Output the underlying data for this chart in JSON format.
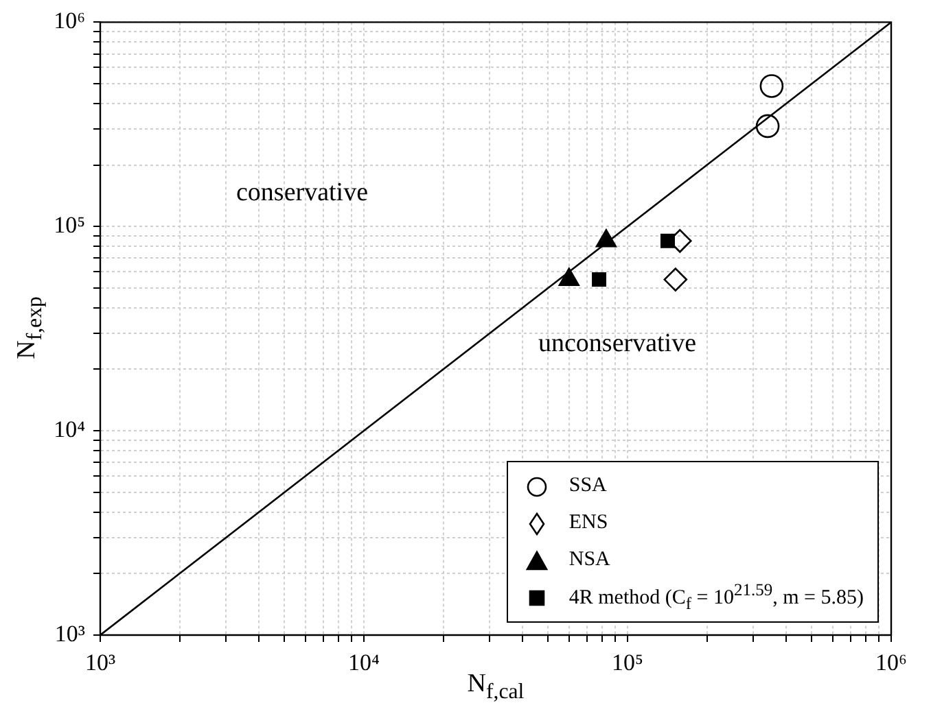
{
  "chart_data": {
    "type": "scatter",
    "xlabel": "N$_{f,cal}$",
    "ylabel": "N$_{f,exp}$",
    "log": "xy",
    "grid": true,
    "legend": "bottom right",
    "xlim": [
      1000,
      1000000
    ],
    "ylim": [
      1000,
      1000000
    ],
    "xticks": [
      {
        "value": 1000,
        "label": "10³"
      },
      {
        "value": 2000,
        "label": null
      },
      {
        "value": 3000,
        "label": null
      },
      {
        "value": 4000,
        "label": null
      },
      {
        "value": 5000,
        "label": null
      },
      {
        "value": 6000,
        "label": null
      },
      {
        "value": 7000,
        "label": null
      },
      {
        "value": 8000,
        "label": null
      },
      {
        "value": 9000,
        "label": null
      },
      {
        "value": 10000,
        "label": "10⁴"
      },
      {
        "value": 20000,
        "label": null
      },
      {
        "value": 30000,
        "label": null
      },
      {
        "value": 40000,
        "label": null
      },
      {
        "value": 50000,
        "label": null
      },
      {
        "value": 60000,
        "label": null
      },
      {
        "value": 70000,
        "label": null
      },
      {
        "value": 80000,
        "label": null
      },
      {
        "value": 90000,
        "label": null
      },
      {
        "value": 100000,
        "label": "10⁵"
      },
      {
        "value": 200000,
        "label": null
      },
      {
        "value": 300000,
        "label": null
      },
      {
        "value": 400000,
        "label": null
      },
      {
        "value": 500000,
        "label": null
      },
      {
        "value": 600000,
        "label": null
      },
      {
        "value": 700000,
        "label": null
      },
      {
        "value": 800000,
        "label": null
      },
      {
        "value": 900000,
        "label": null
      },
      {
        "value": 1000000,
        "label": "10⁶"
      }
    ],
    "yticks": [
      {
        "value": 1000,
        "label": "10³"
      },
      {
        "value": 2000,
        "label": null
      },
      {
        "value": 3000,
        "label": null
      },
      {
        "value": 4000,
        "label": null
      },
      {
        "value": 5000,
        "label": null
      },
      {
        "value": 6000,
        "label": null
      },
      {
        "value": 7000,
        "label": null
      },
      {
        "value": 8000,
        "label": null
      },
      {
        "value": 9000,
        "label": null
      },
      {
        "value": 10000,
        "label": "10⁴"
      },
      {
        "value": 20000,
        "label": null
      },
      {
        "value": 30000,
        "label": null
      },
      {
        "value": 40000,
        "label": null
      },
      {
        "value": 50000,
        "label": null
      },
      {
        "value": 60000,
        "label": null
      },
      {
        "value": 70000,
        "label": null
      },
      {
        "value": 80000,
        "label": null
      },
      {
        "value": 90000,
        "label": null
      },
      {
        "value": 100000,
        "label": "10⁵"
      },
      {
        "value": 200000,
        "label": null
      },
      {
        "value": 300000,
        "label": null
      },
      {
        "value": 400000,
        "label": null
      },
      {
        "value": 500000,
        "label": null
      },
      {
        "value": 600000,
        "label": null
      },
      {
        "value": 700000,
        "label": null
      },
      {
        "value": 800000,
        "label": null
      },
      {
        "value": 900000,
        "label": null
      },
      {
        "value": 1000000,
        "label": "10⁶"
      }
    ],
    "annotations": [
      "conservative",
      "unconservative"
    ],
    "series": [
      {
        "type": "line",
        "color": "#000000",
        "marker": "none",
        "line_style": "solid",
        "x": [
          1000,
          1000000
        ],
        "values": [
          1000,
          1000000
        ]
      },
      {
        "name": "SSA",
        "color": "#000000",
        "marker": "circle",
        "x": [
          352000,
          340000
        ],
        "values": [
          487000,
          310000
        ]
      },
      {
        "name": "ENS",
        "color": "#000000",
        "marker": "diamond",
        "x": [
          158000,
          152000
        ],
        "values": [
          85000,
          55000
        ]
      },
      {
        "name": "NSA",
        "color": "#000000",
        "marker": "triangle",
        "x": [
          83000,
          60000
        ],
        "values": [
          85000,
          55000
        ]
      },
      {
        "name": "4R method (C$_{f}$ = 10$^{21.59}$, m = 5.85)",
        "color": "#000000",
        "marker": "square",
        "x": [
          142000,
          78000
        ],
        "values": [
          85000,
          55000
        ]
      }
    ]
  }
}
